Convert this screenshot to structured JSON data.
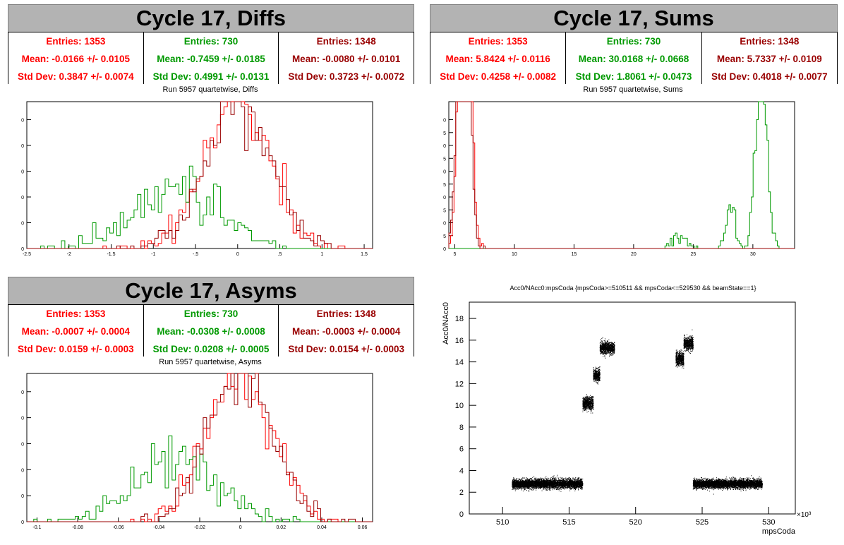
{
  "panels": {
    "diffs": {
      "title": "Cycle 17, Diffs",
      "subtitle": "Run 5957 quartetwise, Diffs",
      "stats": [
        {
          "entries": "Entries: 1353",
          "mean": "Mean: -0.0166 +/- 0.0105",
          "std": "Std Dev: 0.3847 +/- 0.0074",
          "color": "#ff0000"
        },
        {
          "entries": "Entries: 730",
          "mean": "Mean: -0.7459 +/- 0.0185",
          "std": "Std Dev: 0.4991 +/- 0.0131",
          "color": "#009900"
        },
        {
          "entries": "Entries: 1348",
          "mean": "Mean: -0.0080 +/- 0.0101",
          "std": "Std Dev: 0.3723 +/- 0.0072",
          "color": "#990000"
        }
      ]
    },
    "sums": {
      "title": "Cycle 17, Sums",
      "subtitle": "Run 5957 quartetwise, Sums",
      "stats": [
        {
          "entries": "Entries: 1353",
          "mean": "Mean: 5.8424 +/- 0.0116",
          "std": "Std Dev: 0.4258 +/- 0.0082",
          "color": "#ff0000"
        },
        {
          "entries": "Entries: 730",
          "mean": "Mean: 30.0168 +/- 0.0668",
          "std": "Std Dev: 1.8061 +/- 0.0473",
          "color": "#009900"
        },
        {
          "entries": "Entries: 1348",
          "mean": "Mean: 5.7337 +/- 0.0109",
          "std": "Std Dev: 0.4018 +/- 0.0077",
          "color": "#990000"
        }
      ]
    },
    "asyms": {
      "title": "Cycle 17, Asyms",
      "subtitle": "Run 5957 quartetwise, Asyms",
      "stats": [
        {
          "entries": "Entries: 1353",
          "mean": "Mean: -0.0007 +/- 0.0004",
          "std": "Std Dev: 0.0159 +/- 0.0003",
          "color": "#ff0000"
        },
        {
          "entries": "Entries: 730",
          "mean": "Mean: -0.0308 +/- 0.0008",
          "std": "Std Dev: 0.0208 +/- 0.0005",
          "color": "#009900"
        },
        {
          "entries": "Entries: 1348",
          "mean": "Mean: -0.0003 +/- 0.0004",
          "std": "Std Dev: 0.0154 +/- 0.0003",
          "color": "#990000"
        }
      ]
    },
    "scatter": {
      "title": "Acc0/NAcc0:mpsCoda {mpsCoda>=510511 && mpsCoda<=529530 && beamState==1}",
      "ylabel": "Acc0/NAcc0",
      "xlabel": "mpsCoda",
      "exponent": "×10³"
    }
  },
  "chart_data": [
    {
      "type": "histogram",
      "name": "diffs",
      "xlim": [
        -2.5,
        1.6
      ],
      "ylim": [
        0,
        57
      ],
      "xticks": [
        -2.5,
        -2,
        -1.5,
        -1,
        -0.5,
        0,
        0.5,
        1,
        1.5
      ],
      "yticks": [
        0,
        10,
        20,
        30,
        40,
        50
      ],
      "series": [
        {
          "color": "#ff0000",
          "entries": 1353,
          "mean": -0.0166,
          "std": 0.3847
        },
        {
          "color": "#009900",
          "entries": 730,
          "mean": -0.7459,
          "std": 0.4991
        },
        {
          "color": "#990000",
          "entries": 1348,
          "mean": -0.008,
          "std": 0.3723
        }
      ]
    },
    {
      "type": "histogram",
      "name": "sums",
      "xlim": [
        4.5,
        33.5
      ],
      "ylim": [
        0,
        57
      ],
      "xticks": [
        5,
        10,
        15,
        20,
        25,
        30
      ],
      "yticks": [
        0,
        5,
        10,
        15,
        20,
        25,
        30,
        35,
        40,
        45,
        50
      ],
      "series": [
        {
          "color": "#ff0000",
          "entries": 1353,
          "mean": 5.8424,
          "std": 0.4258
        },
        {
          "color": "#009900",
          "entries": 730,
          "mean": 30.0168,
          "std": 1.8061
        },
        {
          "color": "#990000",
          "entries": 1348,
          "mean": 5.7337,
          "std": 0.4018
        }
      ]
    },
    {
      "type": "histogram",
      "name": "asyms",
      "xlim": [
        -0.105,
        0.065
      ],
      "ylim": [
        0,
        57
      ],
      "xticks": [
        -0.1,
        -0.08,
        -0.06,
        -0.04,
        -0.02,
        0,
        0.02,
        0.04,
        0.06
      ],
      "yticks": [
        0,
        10,
        20,
        30,
        40,
        50
      ],
      "series": [
        {
          "color": "#ff0000",
          "entries": 1353,
          "mean": -0.0007,
          "std": 0.0159
        },
        {
          "color": "#009900",
          "entries": 730,
          "mean": -0.0308,
          "std": 0.0208
        },
        {
          "color": "#990000",
          "entries": 1348,
          "mean": -0.0003,
          "std": 0.0154
        }
      ]
    },
    {
      "type": "scatter",
      "name": "acc0",
      "title": "Acc0/NAcc0:mpsCoda {mpsCoda>=510511 && mpsCoda<=529530 && beamState==1}",
      "xlabel": "mpsCoda",
      "ylabel": "Acc0/NAcc0",
      "xlim": [
        507.5,
        532
      ],
      "ylim": [
        0,
        19.5
      ],
      "xticks": [
        510,
        515,
        520,
        525,
        530
      ],
      "yticks": [
        0,
        2,
        4,
        6,
        8,
        10,
        12,
        14,
        16,
        18
      ],
      "clusters": [
        {
          "x": [
            510.7,
            516.0
          ],
          "y": 2.8,
          "spread": 0.35
        },
        {
          "x": [
            516.0,
            516.8
          ],
          "y": 10.2,
          "spread": 0.5
        },
        {
          "x": [
            516.8,
            517.3
          ],
          "y": 12.8,
          "spread": 0.5
        },
        {
          "x": [
            517.3,
            518.4
          ],
          "y": 15.3,
          "spread": 0.45
        },
        {
          "x": [
            523.0,
            523.6
          ],
          "y": 14.3,
          "spread": 0.5
        },
        {
          "x": [
            523.6,
            524.3
          ],
          "y": 15.7,
          "spread": 0.5
        },
        {
          "x": [
            524.3,
            529.5
          ],
          "y": 2.8,
          "spread": 0.33
        }
      ]
    }
  ]
}
